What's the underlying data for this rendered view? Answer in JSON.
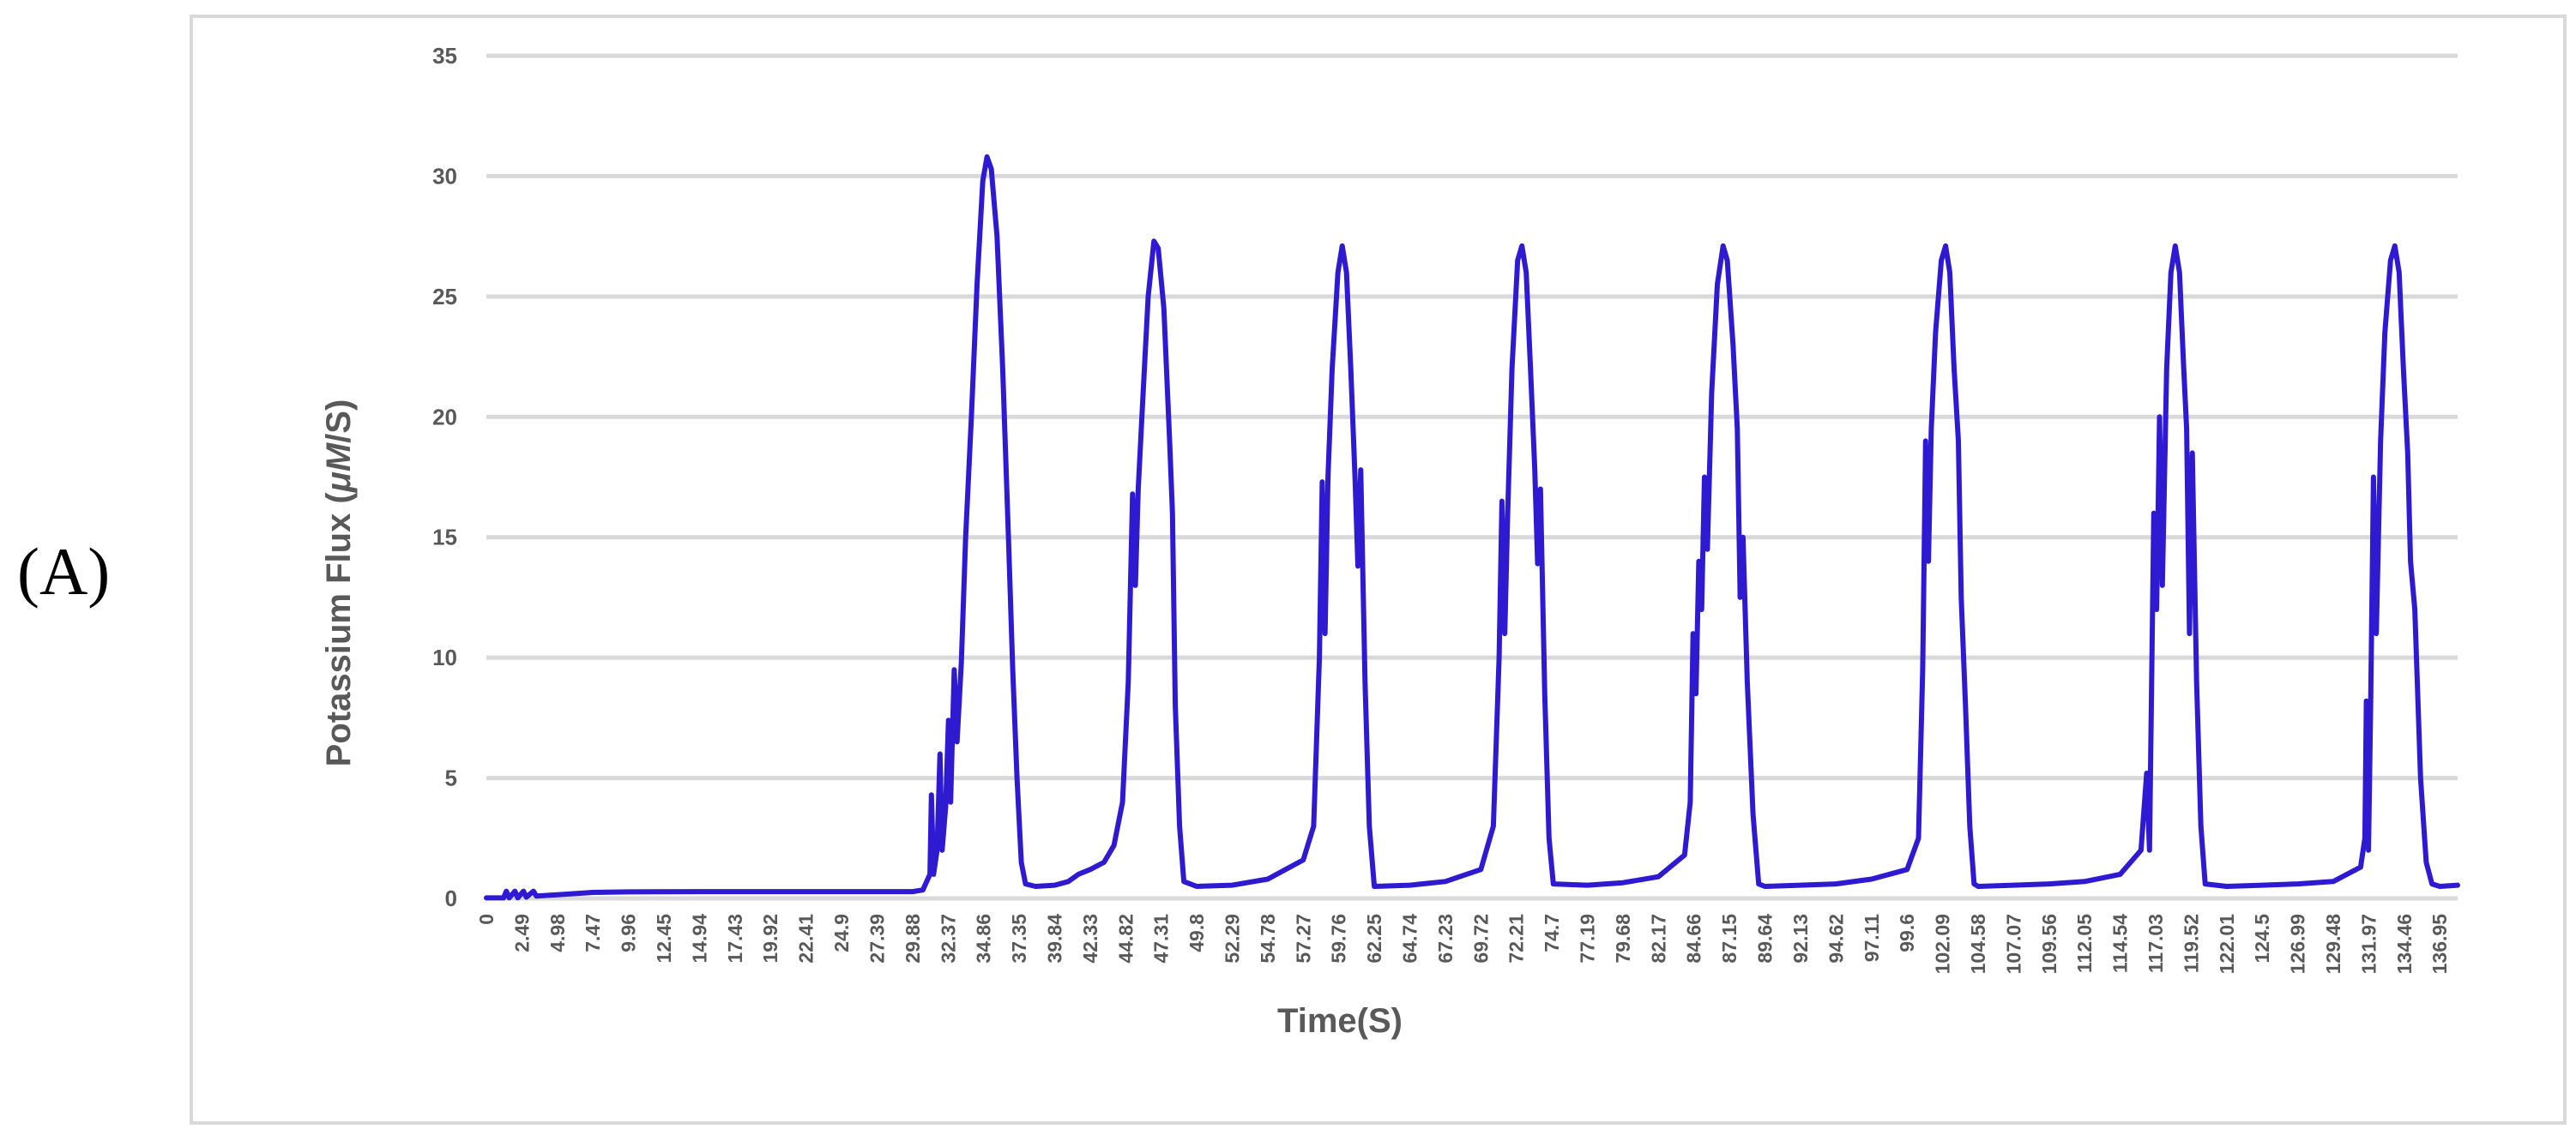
{
  "panel_label": "(A)",
  "chart_data": {
    "type": "line",
    "title": "",
    "xlabel": "Time(S)",
    "ylabel_prefix": "Potassium Flux (",
    "ylabel_units_italic": "μM",
    "ylabel_suffix": "/S)",
    "ylim": [
      0,
      35
    ],
    "xlim": [
      0,
      138.2
    ],
    "y_ticks": [
      0,
      5,
      10,
      15,
      20,
      25,
      30,
      35
    ],
    "x_tick_labels": [
      "0",
      "2.49",
      "4.98",
      "7.47",
      "9.96",
      "12.45",
      "14.94",
      "17.43",
      "19.92",
      "22.41",
      "24.9",
      "27.39",
      "29.88",
      "32.37",
      "34.86",
      "37.35",
      "39.84",
      "42.33",
      "44.82",
      "47.31",
      "49.8",
      "52.29",
      "54.78",
      "57.27",
      "59.76",
      "62.25",
      "64.74",
      "67.23",
      "69.72",
      "72.21",
      "74.7",
      "77.19",
      "79.68",
      "82.17",
      "84.66",
      "87.15",
      "89.64",
      "92.13",
      "94.62",
      "97.11",
      "99.6",
      "102.09",
      "104.58",
      "107.07",
      "109.56",
      "112.05",
      "114.54",
      "117.03",
      "119.52",
      "122.01",
      "124.5",
      "126.99",
      "129.48",
      "131.97",
      "134.46",
      "136.95"
    ],
    "grid": true,
    "legend": "none",
    "series": [
      {
        "color": "#2e1ad0",
        "points": [
          [
            0,
            0.02
          ],
          [
            1.2,
            0.02
          ],
          [
            1.4,
            0.3
          ],
          [
            1.6,
            0.02
          ],
          [
            2.0,
            0.3
          ],
          [
            2.2,
            0.02
          ],
          [
            2.6,
            0.3
          ],
          [
            2.8,
            0.05
          ],
          [
            3.3,
            0.3
          ],
          [
            3.5,
            0.1
          ],
          [
            4.98,
            0.15
          ],
          [
            7.47,
            0.25
          ],
          [
            9.96,
            0.27
          ],
          [
            14.94,
            0.28
          ],
          [
            19.92,
            0.28
          ],
          [
            24.9,
            0.28
          ],
          [
            29.88,
            0.28
          ],
          [
            30.6,
            0.35
          ],
          [
            31.1,
            1.0
          ],
          [
            31.2,
            4.3
          ],
          [
            31.35,
            1.0
          ],
          [
            31.6,
            2.0
          ],
          [
            31.8,
            6.0
          ],
          [
            31.95,
            2.0
          ],
          [
            32.2,
            3.8
          ],
          [
            32.4,
            7.4
          ],
          [
            32.55,
            4.0
          ],
          [
            32.8,
            9.5
          ],
          [
            33.0,
            6.5
          ],
          [
            33.3,
            9.8
          ],
          [
            33.6,
            15.0
          ],
          [
            34.0,
            20.0
          ],
          [
            34.4,
            25.5
          ],
          [
            34.8,
            29.8
          ],
          [
            35.1,
            30.8
          ],
          [
            35.4,
            30.3
          ],
          [
            35.8,
            27.5
          ],
          [
            36.2,
            22.0
          ],
          [
            36.6,
            15.0
          ],
          [
            36.9,
            9.5
          ],
          [
            37.2,
            5.0
          ],
          [
            37.5,
            1.5
          ],
          [
            37.8,
            0.6
          ],
          [
            38.5,
            0.5
          ],
          [
            39.84,
            0.55
          ],
          [
            40.8,
            0.7
          ],
          [
            41.5,
            1.0
          ],
          [
            42.33,
            1.2
          ],
          [
            43.3,
            1.5
          ],
          [
            44.0,
            2.2
          ],
          [
            44.6,
            4.0
          ],
          [
            45.0,
            9.0
          ],
          [
            45.3,
            16.8
          ],
          [
            45.5,
            13.0
          ],
          [
            45.7,
            17.0
          ],
          [
            46.0,
            20.5
          ],
          [
            46.4,
            25.0
          ],
          [
            46.8,
            27.3
          ],
          [
            47.1,
            27.0
          ],
          [
            47.5,
            24.5
          ],
          [
            47.9,
            19.0
          ],
          [
            48.1,
            16.0
          ],
          [
            48.3,
            8.0
          ],
          [
            48.6,
            3.0
          ],
          [
            48.9,
            0.7
          ],
          [
            49.8,
            0.5
          ],
          [
            52.29,
            0.55
          ],
          [
            54.78,
            0.8
          ],
          [
            57.27,
            1.6
          ],
          [
            58.0,
            3.0
          ],
          [
            58.4,
            10.0
          ],
          [
            58.6,
            17.3
          ],
          [
            58.8,
            11.0
          ],
          [
            59.0,
            17.5
          ],
          [
            59.3,
            22.0
          ],
          [
            59.7,
            26.0
          ],
          [
            60.0,
            27.1
          ],
          [
            60.3,
            26.0
          ],
          [
            60.6,
            22.0
          ],
          [
            60.9,
            17.5
          ],
          [
            61.1,
            13.8
          ],
          [
            61.3,
            17.8
          ],
          [
            61.6,
            9.0
          ],
          [
            61.9,
            3.0
          ],
          [
            62.25,
            0.5
          ],
          [
            64.74,
            0.55
          ],
          [
            67.23,
            0.7
          ],
          [
            69.72,
            1.2
          ],
          [
            70.6,
            3.0
          ],
          [
            71.0,
            10.0
          ],
          [
            71.2,
            16.5
          ],
          [
            71.4,
            11.0
          ],
          [
            71.6,
            16.0
          ],
          [
            71.9,
            22.0
          ],
          [
            72.3,
            26.5
          ],
          [
            72.6,
            27.1
          ],
          [
            72.9,
            26.0
          ],
          [
            73.2,
            22.0
          ],
          [
            73.5,
            17.8
          ],
          [
            73.7,
            13.9
          ],
          [
            73.9,
            17.0
          ],
          [
            74.2,
            8.5
          ],
          [
            74.5,
            2.5
          ],
          [
            74.8,
            0.6
          ],
          [
            77.19,
            0.55
          ],
          [
            79.68,
            0.65
          ],
          [
            82.17,
            0.9
          ],
          [
            84.0,
            1.8
          ],
          [
            84.4,
            4.0
          ],
          [
            84.6,
            11.0
          ],
          [
            84.8,
            8.5
          ],
          [
            85.0,
            14.0
          ],
          [
            85.2,
            12.0
          ],
          [
            85.4,
            17.5
          ],
          [
            85.6,
            14.5
          ],
          [
            85.9,
            21.0
          ],
          [
            86.3,
            25.5
          ],
          [
            86.7,
            27.1
          ],
          [
            87.0,
            26.5
          ],
          [
            87.4,
            23.0
          ],
          [
            87.7,
            19.5
          ],
          [
            87.9,
            12.5
          ],
          [
            88.1,
            15.0
          ],
          [
            88.4,
            9.0
          ],
          [
            88.8,
            3.5
          ],
          [
            89.2,
            0.6
          ],
          [
            89.64,
            0.5
          ],
          [
            92.13,
            0.55
          ],
          [
            94.62,
            0.6
          ],
          [
            97.11,
            0.8
          ],
          [
            99.6,
            1.2
          ],
          [
            100.4,
            2.5
          ],
          [
            100.7,
            9.5
          ],
          [
            100.9,
            19.0
          ],
          [
            101.1,
            14.0
          ],
          [
            101.3,
            19.5
          ],
          [
            101.6,
            23.5
          ],
          [
            102.0,
            26.5
          ],
          [
            102.3,
            27.1
          ],
          [
            102.6,
            26.0
          ],
          [
            102.9,
            22.0
          ],
          [
            103.2,
            19.0
          ],
          [
            103.4,
            12.5
          ],
          [
            103.7,
            8.0
          ],
          [
            104.0,
            3.0
          ],
          [
            104.3,
            0.6
          ],
          [
            104.58,
            0.5
          ],
          [
            107.07,
            0.55
          ],
          [
            109.56,
            0.6
          ],
          [
            112.05,
            0.7
          ],
          [
            114.54,
            1.0
          ],
          [
            116.0,
            2.0
          ],
          [
            116.4,
            5.2
          ],
          [
            116.6,
            2.0
          ],
          [
            116.9,
            16.0
          ],
          [
            117.1,
            12.0
          ],
          [
            117.3,
            20.0
          ],
          [
            117.5,
            13.0
          ],
          [
            117.8,
            22.0
          ],
          [
            118.1,
            26.0
          ],
          [
            118.4,
            27.1
          ],
          [
            118.7,
            26.0
          ],
          [
            119.0,
            22.0
          ],
          [
            119.2,
            19.5
          ],
          [
            119.4,
            11.0
          ],
          [
            119.6,
            18.5
          ],
          [
            119.9,
            9.0
          ],
          [
            120.2,
            3.0
          ],
          [
            120.5,
            0.6
          ],
          [
            122.01,
            0.5
          ],
          [
            124.5,
            0.55
          ],
          [
            126.99,
            0.6
          ],
          [
            129.48,
            0.7
          ],
          [
            131.4,
            1.3
          ],
          [
            131.7,
            2.5
          ],
          [
            131.8,
            8.2
          ],
          [
            131.95,
            2.0
          ],
          [
            132.1,
            8.0
          ],
          [
            132.3,
            17.5
          ],
          [
            132.5,
            11.0
          ],
          [
            132.8,
            19.0
          ],
          [
            133.1,
            23.5
          ],
          [
            133.5,
            26.5
          ],
          [
            133.8,
            27.1
          ],
          [
            134.1,
            26.0
          ],
          [
            134.4,
            22.0
          ],
          [
            134.7,
            18.5
          ],
          [
            134.9,
            14.0
          ],
          [
            135.2,
            12.0
          ],
          [
            135.6,
            5.0
          ],
          [
            136.0,
            1.5
          ],
          [
            136.4,
            0.6
          ],
          [
            136.95,
            0.5
          ],
          [
            138.2,
            0.55
          ]
        ]
      }
    ]
  }
}
